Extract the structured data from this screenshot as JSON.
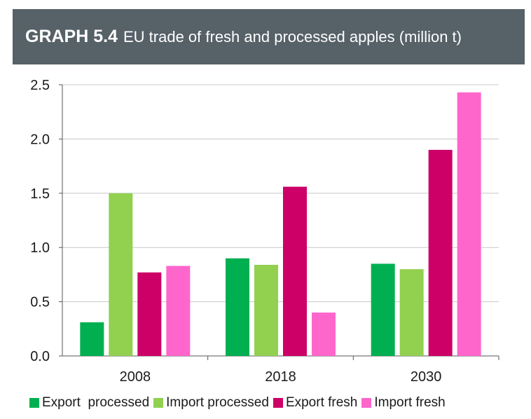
{
  "header": {
    "label": "GRAPH 5.4",
    "title": "EU trade of fresh and processed apples (million t)"
  },
  "chart_data": {
    "type": "bar",
    "title": "EU trade of fresh and processed apples (million t)",
    "xlabel": "",
    "ylabel": "",
    "categories": [
      "2008",
      "2018",
      "2030"
    ],
    "ylim": [
      0,
      2.5
    ],
    "yticks": [
      "0.0",
      "0.5",
      "1.0",
      "1.5",
      "2.0",
      "2.5"
    ],
    "grid": true,
    "legend_position": "bottom",
    "series": [
      {
        "name": "Export  processed",
        "color": "#00b050",
        "values": [
          0.31,
          0.9,
          0.85
        ]
      },
      {
        "name": "Import processed",
        "color": "#92d050",
        "values": [
          1.5,
          0.84,
          0.8
        ]
      },
      {
        "name": "Export fresh",
        "color": "#cc0066",
        "values": [
          0.77,
          1.56,
          1.9
        ]
      },
      {
        "name": "Import fresh",
        "color": "#ff66cc",
        "values": [
          0.83,
          0.4,
          2.43
        ]
      }
    ]
  }
}
